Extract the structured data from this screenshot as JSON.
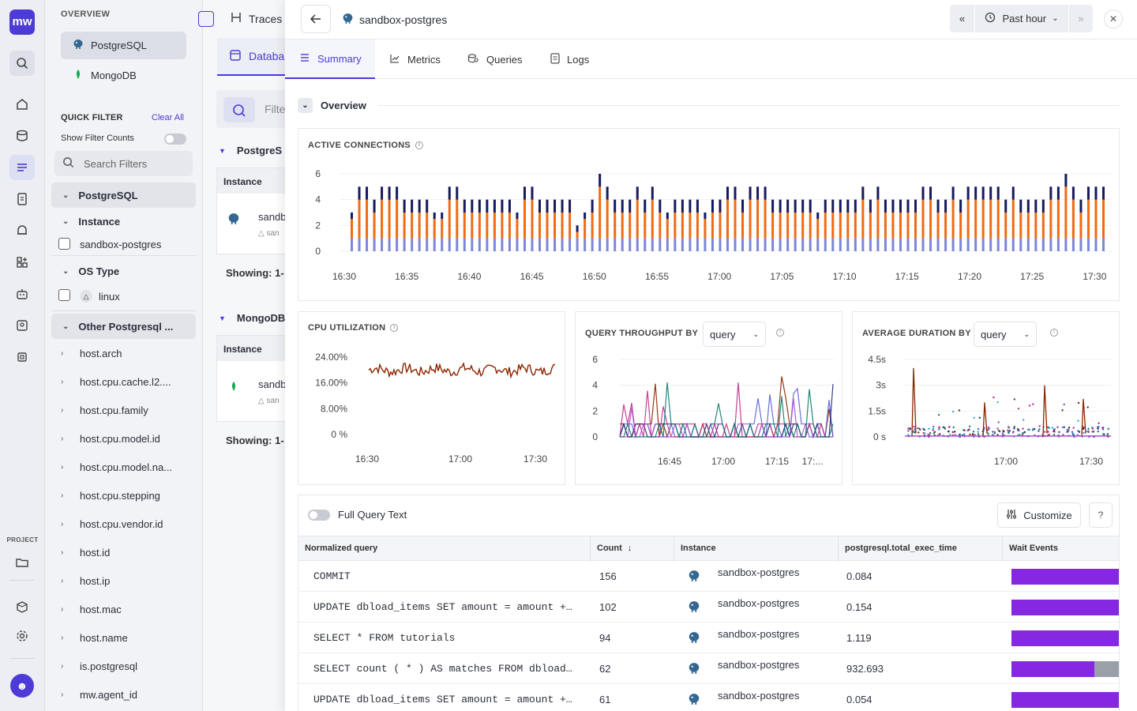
{
  "rail": {
    "logo": "mw",
    "project_label": "PROJECT"
  },
  "sidebar": {
    "header": "OVERVIEW",
    "services": [
      {
        "label": "PostgreSQL",
        "active": true
      },
      {
        "label": "MongoDB",
        "active": false
      }
    ],
    "quick_filter": "QUICK FILTER",
    "clear_all": "Clear All",
    "show_filter_counts": "Show Filter Counts",
    "search_placeholder": "Search Filters",
    "group_postgres": "PostgreSQL",
    "group_instance": "Instance",
    "instance_value": "sandbox-postgres",
    "group_os": "OS Type",
    "os_value": "linux",
    "group_other": "Other Postgresql ...",
    "attrs": [
      "host.arch",
      "host.cpu.cache.l2....",
      "host.cpu.family",
      "host.cpu.model.id",
      "host.cpu.model.na...",
      "host.cpu.stepping",
      "host.cpu.vendor.id",
      "host.id",
      "host.ip",
      "host.mac",
      "host.name",
      "is.postgresql",
      "mw.agent_id"
    ]
  },
  "mid": {
    "traces": "Traces",
    "db_tab": "Databa",
    "filter_placeholder": "Filte",
    "sec1": "PostgreS",
    "sec2": "MongoDB",
    "instance_header": "Instance",
    "card_name": "sandb",
    "card_sub": "san",
    "showing": "Showing: 1-"
  },
  "panel": {
    "title": "sandbox-postgres",
    "time_range": "Past hour",
    "tabs": [
      {
        "label": "Summary",
        "active": true
      },
      {
        "label": "Metrics",
        "active": false
      },
      {
        "label": "Queries",
        "active": false
      },
      {
        "label": "Logs",
        "active": false
      }
    ],
    "overview": "Overview"
  },
  "colors": {
    "accent": "#4c3bd6",
    "orange": "#f06a12",
    "navy": "#141a5c",
    "lavender": "#7c86d8",
    "brown": "#8b2500",
    "purple_bar": "#8528e0"
  },
  "active_connections": {
    "title": "ACTIVE CONNECTIONS",
    "yticks": [
      "6",
      "4",
      "2",
      "0"
    ],
    "xticks": [
      "16:30",
      "16:35",
      "16:40",
      "16:45",
      "16:50",
      "16:55",
      "17:00",
      "17:05",
      "17:10",
      "17:15",
      "17:20",
      "17:25",
      "17:30"
    ]
  },
  "cpu": {
    "title": "CPU UTILIZATION",
    "yticks": [
      "24.00%",
      "16.00%",
      "8.00%",
      "0 %"
    ],
    "xticks": [
      "16:30",
      "17:00",
      "17:30"
    ]
  },
  "throughput": {
    "title": "QUERY THROUGHPUT BY",
    "select": "query",
    "yticks": [
      "6",
      "4",
      "2",
      "0"
    ],
    "xticks": [
      "16:45",
      "17:00",
      "17:15",
      "17:..."
    ]
  },
  "duration": {
    "title": "AVERAGE DURATION BY",
    "select": "query",
    "yticks": [
      "4.5s",
      "3s",
      "1.5s",
      "0 s"
    ],
    "xticks": [
      "17:00",
      "17:30"
    ]
  },
  "chart_data": [
    {
      "type": "bar",
      "title": "ACTIVE CONNECTIONS",
      "ylim": [
        0,
        6
      ],
      "x_range": [
        "16:30",
        "17:30"
      ],
      "stacked": true,
      "series_note": "stacked bars per interval: lavender base ~1, orange ~3, navy top ~1 (total mostly 5, occasionally 3, 4 or 6)",
      "totals": [
        3,
        5,
        5,
        4,
        5,
        5,
        5,
        4,
        4,
        4,
        4,
        3,
        3,
        5,
        5,
        4,
        4,
        4,
        4,
        4,
        4,
        4,
        3,
        5,
        5,
        4,
        4,
        4,
        4,
        4,
        2,
        3,
        4,
        6,
        5,
        4,
        4,
        4,
        5,
        4,
        5,
        4,
        3,
        4,
        4,
        4,
        4,
        3,
        4,
        4,
        5,
        5,
        4,
        5,
        5,
        5,
        4,
        4,
        4,
        4,
        4,
        4,
        3,
        4,
        4,
        4,
        4,
        4,
        5,
        4,
        5,
        4,
        4,
        4,
        4,
        4,
        5,
        5,
        4,
        4,
        5,
        4,
        5,
        5,
        5,
        5,
        5,
        4,
        5,
        4,
        4,
        4,
        4,
        5,
        5,
        6,
        5,
        4,
        5,
        5,
        5
      ]
    },
    {
      "type": "line",
      "title": "CPU UTILIZATION",
      "ylim": [
        0,
        24
      ],
      "x_range": [
        "16:30",
        "17:30"
      ],
      "series": [
        {
          "values_note": "fluctuates between ~18% and ~23%, mean ~20%"
        }
      ]
    },
    {
      "type": "line",
      "title": "QUERY THROUGHPUT BY query",
      "ylim": [
        0,
        6
      ],
      "x_range": [
        "16:35",
        "17:35"
      ],
      "series_note": "many query series, mostly 0-1 with spikes up to ~4-5"
    },
    {
      "type": "line",
      "title": "AVERAGE DURATION BY query",
      "ylim": [
        0,
        4.5
      ],
      "x_range": [
        "16:40",
        "17:40"
      ],
      "series_note": "many query series, mostly near 0 s with spikes up to ~4 s"
    }
  ],
  "queries": {
    "full_text_label": "Full Query Text",
    "customize": "Customize",
    "columns": [
      "Normalized query",
      "Count",
      "Instance",
      "postgresql.total_exec_time",
      "Wait Events"
    ],
    "rows": [
      {
        "query": "COMMIT",
        "count": "156",
        "instance": "sandbox-postgres",
        "time": "0.084",
        "wait": 1.0
      },
      {
        "query": "UPDATE dbload_items SET amount = amount +…",
        "count": "102",
        "instance": "sandbox-postgres",
        "time": "0.154",
        "wait": 1.0
      },
      {
        "query": "SELECT * FROM tutorials",
        "count": "94",
        "instance": "sandbox-postgres",
        "time": "1.119",
        "wait": 1.0
      },
      {
        "query": "SELECT count ( * ) AS matches FROM dbload…",
        "count": "62",
        "instance": "sandbox-postgres",
        "time": "932.693",
        "wait": 0.76
      },
      {
        "query": "UPDATE dbload_items SET amount = amount +…",
        "count": "61",
        "instance": "sandbox-postgres",
        "time": "0.054",
        "wait": 1.0
      }
    ]
  }
}
